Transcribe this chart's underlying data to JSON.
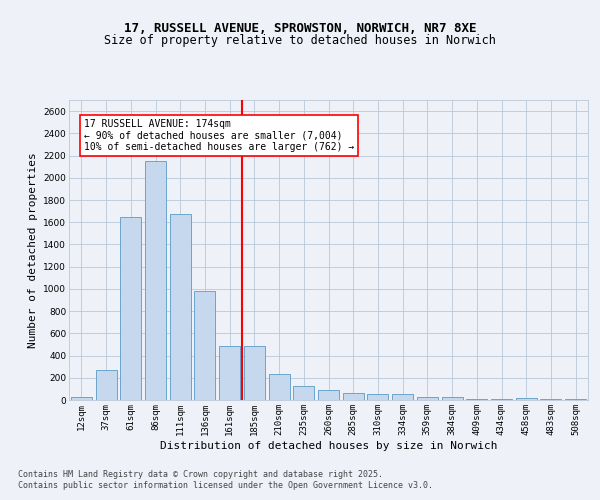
{
  "title_line1": "17, RUSSELL AVENUE, SPROWSTON, NORWICH, NR7 8XE",
  "title_line2": "Size of property relative to detached houses in Norwich",
  "xlabel": "Distribution of detached houses by size in Norwich",
  "ylabel": "Number of detached properties",
  "categories": [
    "12sqm",
    "37sqm",
    "61sqm",
    "86sqm",
    "111sqm",
    "136sqm",
    "161sqm",
    "185sqm",
    "210sqm",
    "235sqm",
    "260sqm",
    "285sqm",
    "310sqm",
    "334sqm",
    "359sqm",
    "384sqm",
    "409sqm",
    "434sqm",
    "458sqm",
    "483sqm",
    "508sqm"
  ],
  "values": [
    30,
    270,
    1650,
    2150,
    1670,
    980,
    490,
    490,
    230,
    130,
    90,
    60,
    55,
    50,
    30,
    30,
    5,
    5,
    15,
    5,
    10
  ],
  "bar_color": "#c5d8ed",
  "bar_edge_color": "#5a9bc7",
  "vline_color": "red",
  "annotation_title": "17 RUSSELL AVENUE: 174sqm",
  "annotation_line1": "← 90% of detached houses are smaller (7,004)",
  "annotation_line2": "10% of semi-detached houses are larger (762) →",
  "annotation_box_color": "red",
  "annotation_fill": "white",
  "ylim": [
    0,
    2700
  ],
  "yticks": [
    0,
    200,
    400,
    600,
    800,
    1000,
    1200,
    1400,
    1600,
    1800,
    2000,
    2200,
    2400,
    2600
  ],
  "footer_line1": "Contains HM Land Registry data © Crown copyright and database right 2025.",
  "footer_line2": "Contains public sector information licensed under the Open Government Licence v3.0.",
  "bg_color": "#eef2f8",
  "plot_bg_color": "#eef2f8",
  "grid_color": "#b8c8d8",
  "title_fontsize": 9,
  "subtitle_fontsize": 8.5,
  "axis_label_fontsize": 8,
  "tick_fontsize": 6.5,
  "annotation_fontsize": 7,
  "footer_fontsize": 6
}
